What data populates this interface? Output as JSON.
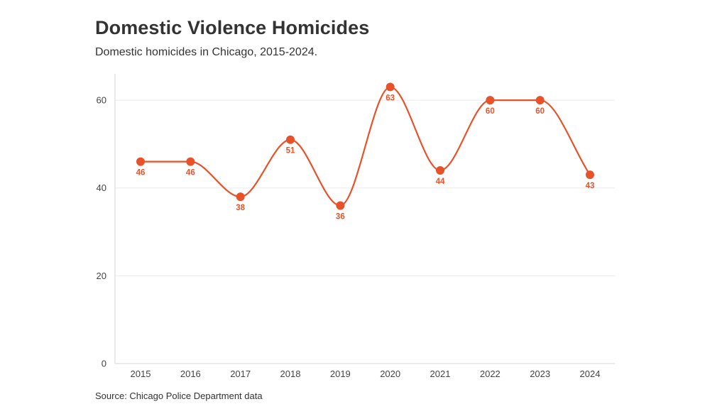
{
  "title": "Domestic Violence Homicides",
  "subtitle": "Domestic homicides in Chicago, 2015-2024.",
  "source": "Source: Chicago Police Department data",
  "colors": {
    "series": "#e8522a",
    "grid": "#ececec",
    "axis": "#d6d6d6",
    "text": "#333333"
  },
  "chart_data": {
    "type": "line",
    "title": "Domestic Violence Homicides",
    "subtitle": "Domestic homicides in Chicago, 2015-2024.",
    "xlabel": "",
    "ylabel": "",
    "x": [
      "2015",
      "2016",
      "2017",
      "2018",
      "2019",
      "2020",
      "2021",
      "2022",
      "2023",
      "2024"
    ],
    "series": [
      {
        "values": [
          46,
          46,
          38,
          51,
          36,
          63,
          44,
          60,
          60,
          43
        ]
      }
    ],
    "yticks": [
      0,
      20,
      40,
      60
    ],
    "ylim": [
      0,
      66
    ],
    "grid": true,
    "legend": "none",
    "smooth": true,
    "data_labels": true
  }
}
